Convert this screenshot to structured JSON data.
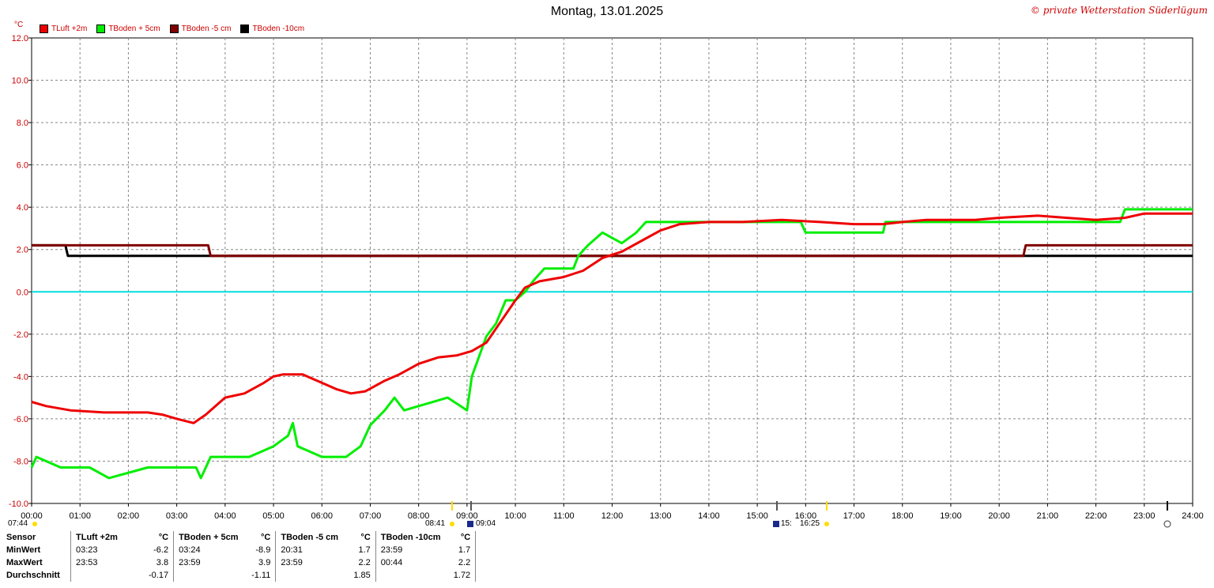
{
  "header": {
    "title": "Montag, 13.01.2025",
    "credit": "© private Wetterstation Süderlügum",
    "unit": "°C"
  },
  "legend": [
    {
      "label": "TLuft +2m",
      "color": "#ee0000"
    },
    {
      "label": "TBoden + 5cm",
      "color": "#00ee00"
    },
    {
      "label": "TBoden -5 cm",
      "color": "#800000"
    },
    {
      "label": "TBoden -10cm",
      "color": "#000000"
    }
  ],
  "sun_markers": {
    "sunrise": "07:44",
    "noon_start": "08:41",
    "noon_mark": "09:04",
    "noon_end": "15:",
    "sunset": "16:25"
  },
  "chart_data": {
    "type": "line",
    "title": "Montag, 13.01.2025",
    "xlabel": "",
    "ylabel": "°C",
    "xlim": [
      0,
      24
    ],
    "ylim": [
      -10,
      12
    ],
    "x_ticks": [
      "00:00",
      "01:00",
      "02:00",
      "03:00",
      "04:00",
      "05:00",
      "06:00",
      "07:00",
      "08:00",
      "09:00",
      "10:00",
      "11:00",
      "12:00",
      "13:00",
      "14:00",
      "15:00",
      "16:00",
      "17:00",
      "18:00",
      "19:00",
      "20:00",
      "21:00",
      "22:00",
      "23:00",
      "24:00"
    ],
    "y_ticks": [
      "-10.0",
      "-8.0",
      "-6.0",
      "-4.0",
      "-2.0",
      "0.0",
      "2.0",
      "4.0",
      "6.0",
      "8.0",
      "10.0",
      "12.0"
    ],
    "grid": true,
    "legend_position": "top-left",
    "series": [
      {
        "name": "TLuft +2m",
        "color": "#ee0000",
        "points": [
          [
            0,
            -5.2
          ],
          [
            0.3,
            -5.4
          ],
          [
            0.8,
            -5.6
          ],
          [
            1.5,
            -5.7
          ],
          [
            2.4,
            -5.7
          ],
          [
            2.7,
            -5.8
          ],
          [
            3.0,
            -6.0
          ],
          [
            3.35,
            -6.2
          ],
          [
            3.6,
            -5.8
          ],
          [
            4.0,
            -5.0
          ],
          [
            4.4,
            -4.8
          ],
          [
            4.8,
            -4.3
          ],
          [
            5.0,
            -4.0
          ],
          [
            5.2,
            -3.9
          ],
          [
            5.6,
            -3.9
          ],
          [
            6.0,
            -4.3
          ],
          [
            6.3,
            -4.6
          ],
          [
            6.6,
            -4.8
          ],
          [
            6.9,
            -4.7
          ],
          [
            7.3,
            -4.2
          ],
          [
            7.6,
            -3.9
          ],
          [
            8.0,
            -3.4
          ],
          [
            8.4,
            -3.1
          ],
          [
            8.8,
            -3.0
          ],
          [
            9.1,
            -2.8
          ],
          [
            9.4,
            -2.4
          ],
          [
            9.7,
            -1.4
          ],
          [
            10.0,
            -0.4
          ],
          [
            10.2,
            0.2
          ],
          [
            10.5,
            0.5
          ],
          [
            11.0,
            0.7
          ],
          [
            11.4,
            1.0
          ],
          [
            11.8,
            1.6
          ],
          [
            12.2,
            1.9
          ],
          [
            12.6,
            2.4
          ],
          [
            13.0,
            2.9
          ],
          [
            13.4,
            3.2
          ],
          [
            14.0,
            3.3
          ],
          [
            14.7,
            3.3
          ],
          [
            15.5,
            3.4
          ],
          [
            16.3,
            3.3
          ],
          [
            17.0,
            3.2
          ],
          [
            17.6,
            3.2
          ],
          [
            18.0,
            3.3
          ],
          [
            18.5,
            3.4
          ],
          [
            19.5,
            3.4
          ],
          [
            20.0,
            3.5
          ],
          [
            20.8,
            3.6
          ],
          [
            21.4,
            3.5
          ],
          [
            22.0,
            3.4
          ],
          [
            22.6,
            3.5
          ],
          [
            23.0,
            3.7
          ],
          [
            24.0,
            3.7
          ]
        ]
      },
      {
        "name": "TBoden + 5cm",
        "color": "#00ee00",
        "points": [
          [
            0,
            -8.3
          ],
          [
            0.1,
            -7.8
          ],
          [
            0.6,
            -8.3
          ],
          [
            1.2,
            -8.3
          ],
          [
            1.6,
            -8.8
          ],
          [
            2.4,
            -8.3
          ],
          [
            3.4,
            -8.3
          ],
          [
            3.5,
            -8.8
          ],
          [
            3.6,
            -8.3
          ],
          [
            3.7,
            -7.8
          ],
          [
            4.5,
            -7.8
          ],
          [
            5.0,
            -7.3
          ],
          [
            5.3,
            -6.8
          ],
          [
            5.4,
            -6.2
          ],
          [
            5.5,
            -7.3
          ],
          [
            6.0,
            -7.8
          ],
          [
            6.5,
            -7.8
          ],
          [
            6.8,
            -7.3
          ],
          [
            7.0,
            -6.3
          ],
          [
            7.3,
            -5.6
          ],
          [
            7.5,
            -5.0
          ],
          [
            7.7,
            -5.6
          ],
          [
            8.6,
            -5.0
          ],
          [
            9.0,
            -5.6
          ],
          [
            9.1,
            -4.0
          ],
          [
            9.4,
            -2.1
          ],
          [
            9.6,
            -1.5
          ],
          [
            9.8,
            -0.4
          ],
          [
            10.0,
            -0.4
          ],
          [
            10.2,
            0.0
          ],
          [
            10.4,
            0.6
          ],
          [
            10.6,
            1.1
          ],
          [
            11.2,
            1.1
          ],
          [
            11.3,
            1.7
          ],
          [
            11.5,
            2.2
          ],
          [
            11.8,
            2.8
          ],
          [
            12.2,
            2.3
          ],
          [
            12.5,
            2.8
          ],
          [
            12.7,
            3.3
          ],
          [
            14.5,
            3.3
          ],
          [
            15.9,
            3.3
          ],
          [
            16.0,
            2.8
          ],
          [
            17.0,
            2.8
          ],
          [
            17.6,
            2.8
          ],
          [
            17.65,
            3.3
          ],
          [
            22.5,
            3.3
          ],
          [
            22.6,
            3.9
          ],
          [
            24.0,
            3.9
          ]
        ]
      },
      {
        "name": "TBoden -5 cm",
        "color": "#800000",
        "points": [
          [
            0,
            2.2
          ],
          [
            3.65,
            2.2
          ],
          [
            3.7,
            1.7
          ],
          [
            20.5,
            1.7
          ],
          [
            20.55,
            2.2
          ],
          [
            24.0,
            2.2
          ]
        ]
      },
      {
        "name": "TBoden -10cm",
        "color": "#000000",
        "points": [
          [
            0,
            2.2
          ],
          [
            0.7,
            2.2
          ],
          [
            0.75,
            1.7
          ],
          [
            24.0,
            1.7
          ]
        ]
      }
    ]
  },
  "stats": {
    "headers": [
      "Sensor",
      "TLuft +2m",
      "°C",
      "TBoden + 5cm",
      "°C",
      "TBoden -5 cm",
      "°C",
      "TBoden -10cm",
      "°C"
    ],
    "rows": [
      {
        "label": "MinWert",
        "cells": [
          "03:23",
          "-6.2",
          "03:24",
          "-8.9",
          "20:31",
          "1.7",
          "23:59",
          "1.7"
        ]
      },
      {
        "label": "MaxWert",
        "cells": [
          "23:53",
          "3.8",
          "23:59",
          "3.9",
          "23:59",
          "2.2",
          "00:44",
          "2.2"
        ]
      },
      {
        "label": "Durchschnitt",
        "cells": [
          "",
          "-0.17",
          "",
          "-1.11",
          "",
          "1.85",
          "",
          "1.72"
        ]
      }
    ]
  }
}
